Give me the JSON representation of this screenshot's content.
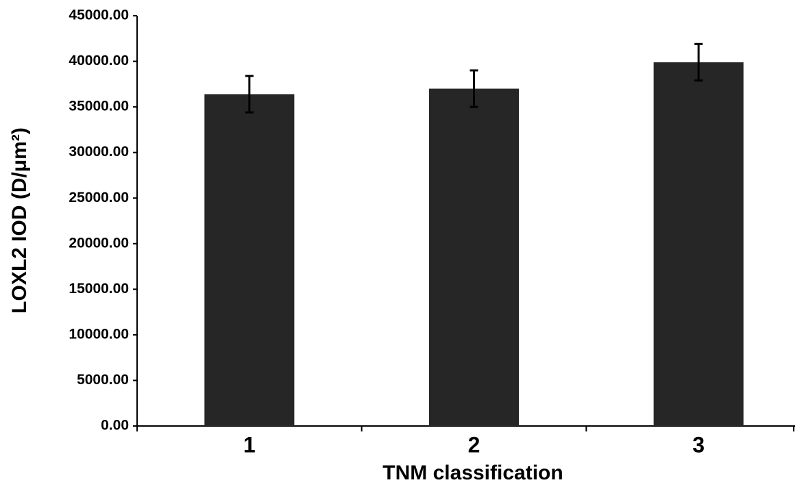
{
  "chart_data": {
    "type": "bar",
    "x_label": "TNM classification",
    "y_label": "LOXL2 IOD (D/μm²)",
    "categories": [
      "1",
      "2",
      "3"
    ],
    "values": [
      36400,
      37000,
      39900
    ],
    "errors": [
      2000,
      2000,
      2000
    ],
    "color": "#262626",
    "ylim": [
      0,
      45000
    ],
    "yticks": [
      {
        "value": 0,
        "label": "0.00"
      },
      {
        "value": 5000,
        "label": "5000.00"
      },
      {
        "value": 10000,
        "label": "10000.00"
      },
      {
        "value": 15000,
        "label": "15000.00"
      },
      {
        "value": 20000,
        "label": "20000.00"
      },
      {
        "value": 25000,
        "label": "25000.00"
      },
      {
        "value": 30000,
        "label": "30000.00"
      },
      {
        "value": 35000,
        "label": "35000.00"
      },
      {
        "value": 40000,
        "label": "40000.00"
      },
      {
        "value": 45000,
        "label": "45000.00"
      }
    ],
    "grid": false
  }
}
